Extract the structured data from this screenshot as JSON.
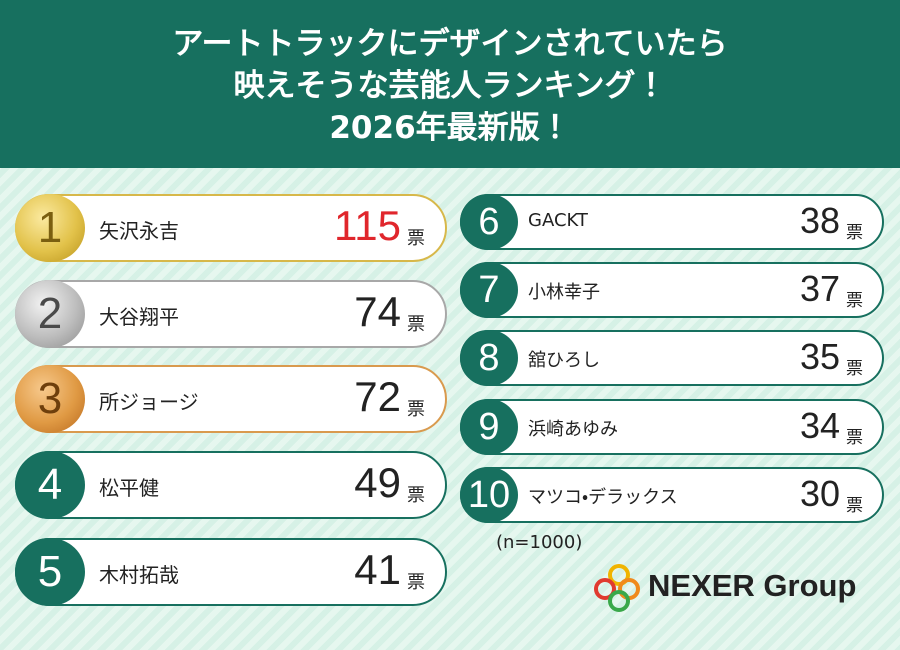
{
  "header": {
    "title_lines": [
      "アートトラックにデザインされていたら",
      "映えそうな芸能人ランキング！",
      "2026年最新版！"
    ]
  },
  "unit": "票",
  "rankings": [
    {
      "rank": 1,
      "name": "矢沢永吉",
      "votes": 115
    },
    {
      "rank": 2,
      "name": "大谷翔平",
      "votes": 74
    },
    {
      "rank": 3,
      "name": "所ジョージ",
      "votes": 72
    },
    {
      "rank": 4,
      "name": "松平健",
      "votes": 49
    },
    {
      "rank": 5,
      "name": "木村拓哉",
      "votes": 41
    },
    {
      "rank": 6,
      "name": "GACKT",
      "votes": 38
    },
    {
      "rank": 7,
      "name": "小林幸子",
      "votes": 37
    },
    {
      "rank": 8,
      "name": "舘ひろし",
      "votes": 35
    },
    {
      "rank": 9,
      "name": "浜崎あゆみ",
      "votes": 34
    },
    {
      "rank": 10,
      "name": "マツコ・デラックス",
      "votes": 30
    }
  ],
  "note": "(n=1000)",
  "brand": "NEXER Group"
}
